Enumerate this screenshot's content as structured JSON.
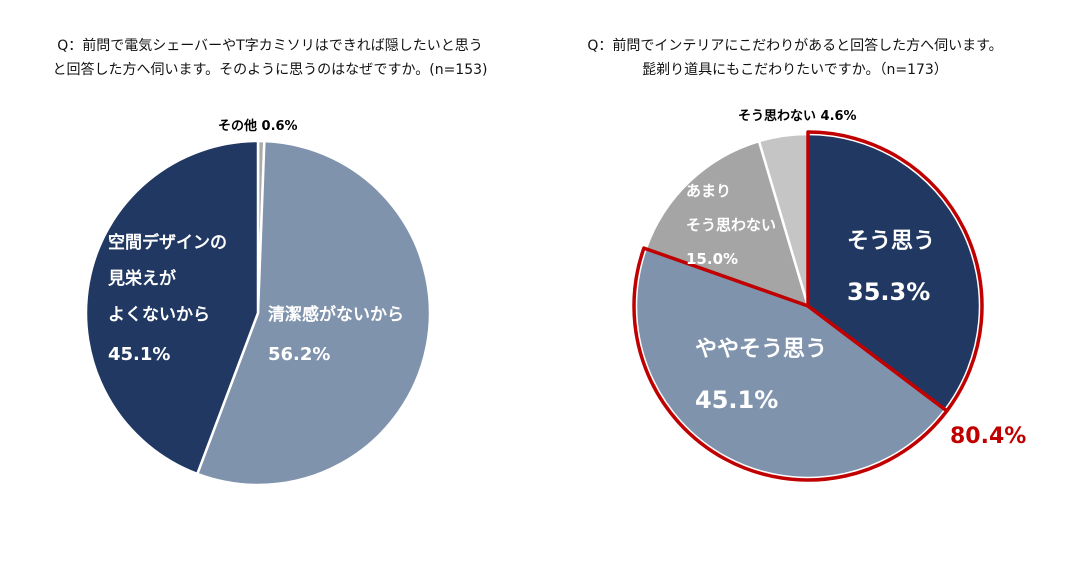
{
  "chart_data": [
    {
      "type": "pie",
      "title": [
        "Q：前問で電気シェーバーやT字カミソリはできれば隠したいと思う",
        "と回答した方へ伺います。そのように思うのはなぜですか。(n=153)"
      ],
      "slices": [
        {
          "label": [
            "清潔感がないから"
          ],
          "value": 56.2,
          "value_label": "56.2%",
          "color": "#8093ad"
        },
        {
          "label": [
            "空間デザインの",
            "見栄えが",
            "よくないから"
          ],
          "value": 45.1,
          "value_label": "45.1%",
          "color": "#203862"
        },
        {
          "label": [
            "その他"
          ],
          "value": 0.6,
          "value_label": "0.6%",
          "color": "#aaaaaa"
        }
      ]
    },
    {
      "type": "pie",
      "title": [
        "Q：前問でインテリアにこだわりがあると回答した方へ伺います。",
        "髭剃り道具にもこだわりたいですか。（n=173）"
      ],
      "slices": [
        {
          "label": [
            "そう思う"
          ],
          "value": 35.3,
          "value_label": "35.3%",
          "color": "#203862"
        },
        {
          "label": [
            "ややそう思う"
          ],
          "value": 45.1,
          "value_label": "45.1%",
          "color": "#8093ad"
        },
        {
          "label": [
            "あまり",
            "そう思わない"
          ],
          "value": 15.0,
          "value_label": "15.0%",
          "color": "#a5a5a5"
        },
        {
          "label": [
            "そう思わない"
          ],
          "value": 4.6,
          "value_label": "4.6%",
          "color": "#c5c5c5"
        }
      ],
      "highlight": {
        "slices": [
          "そう思う",
          "ややそう思う"
        ],
        "label": "80.4%",
        "color": "#c00000"
      }
    }
  ]
}
